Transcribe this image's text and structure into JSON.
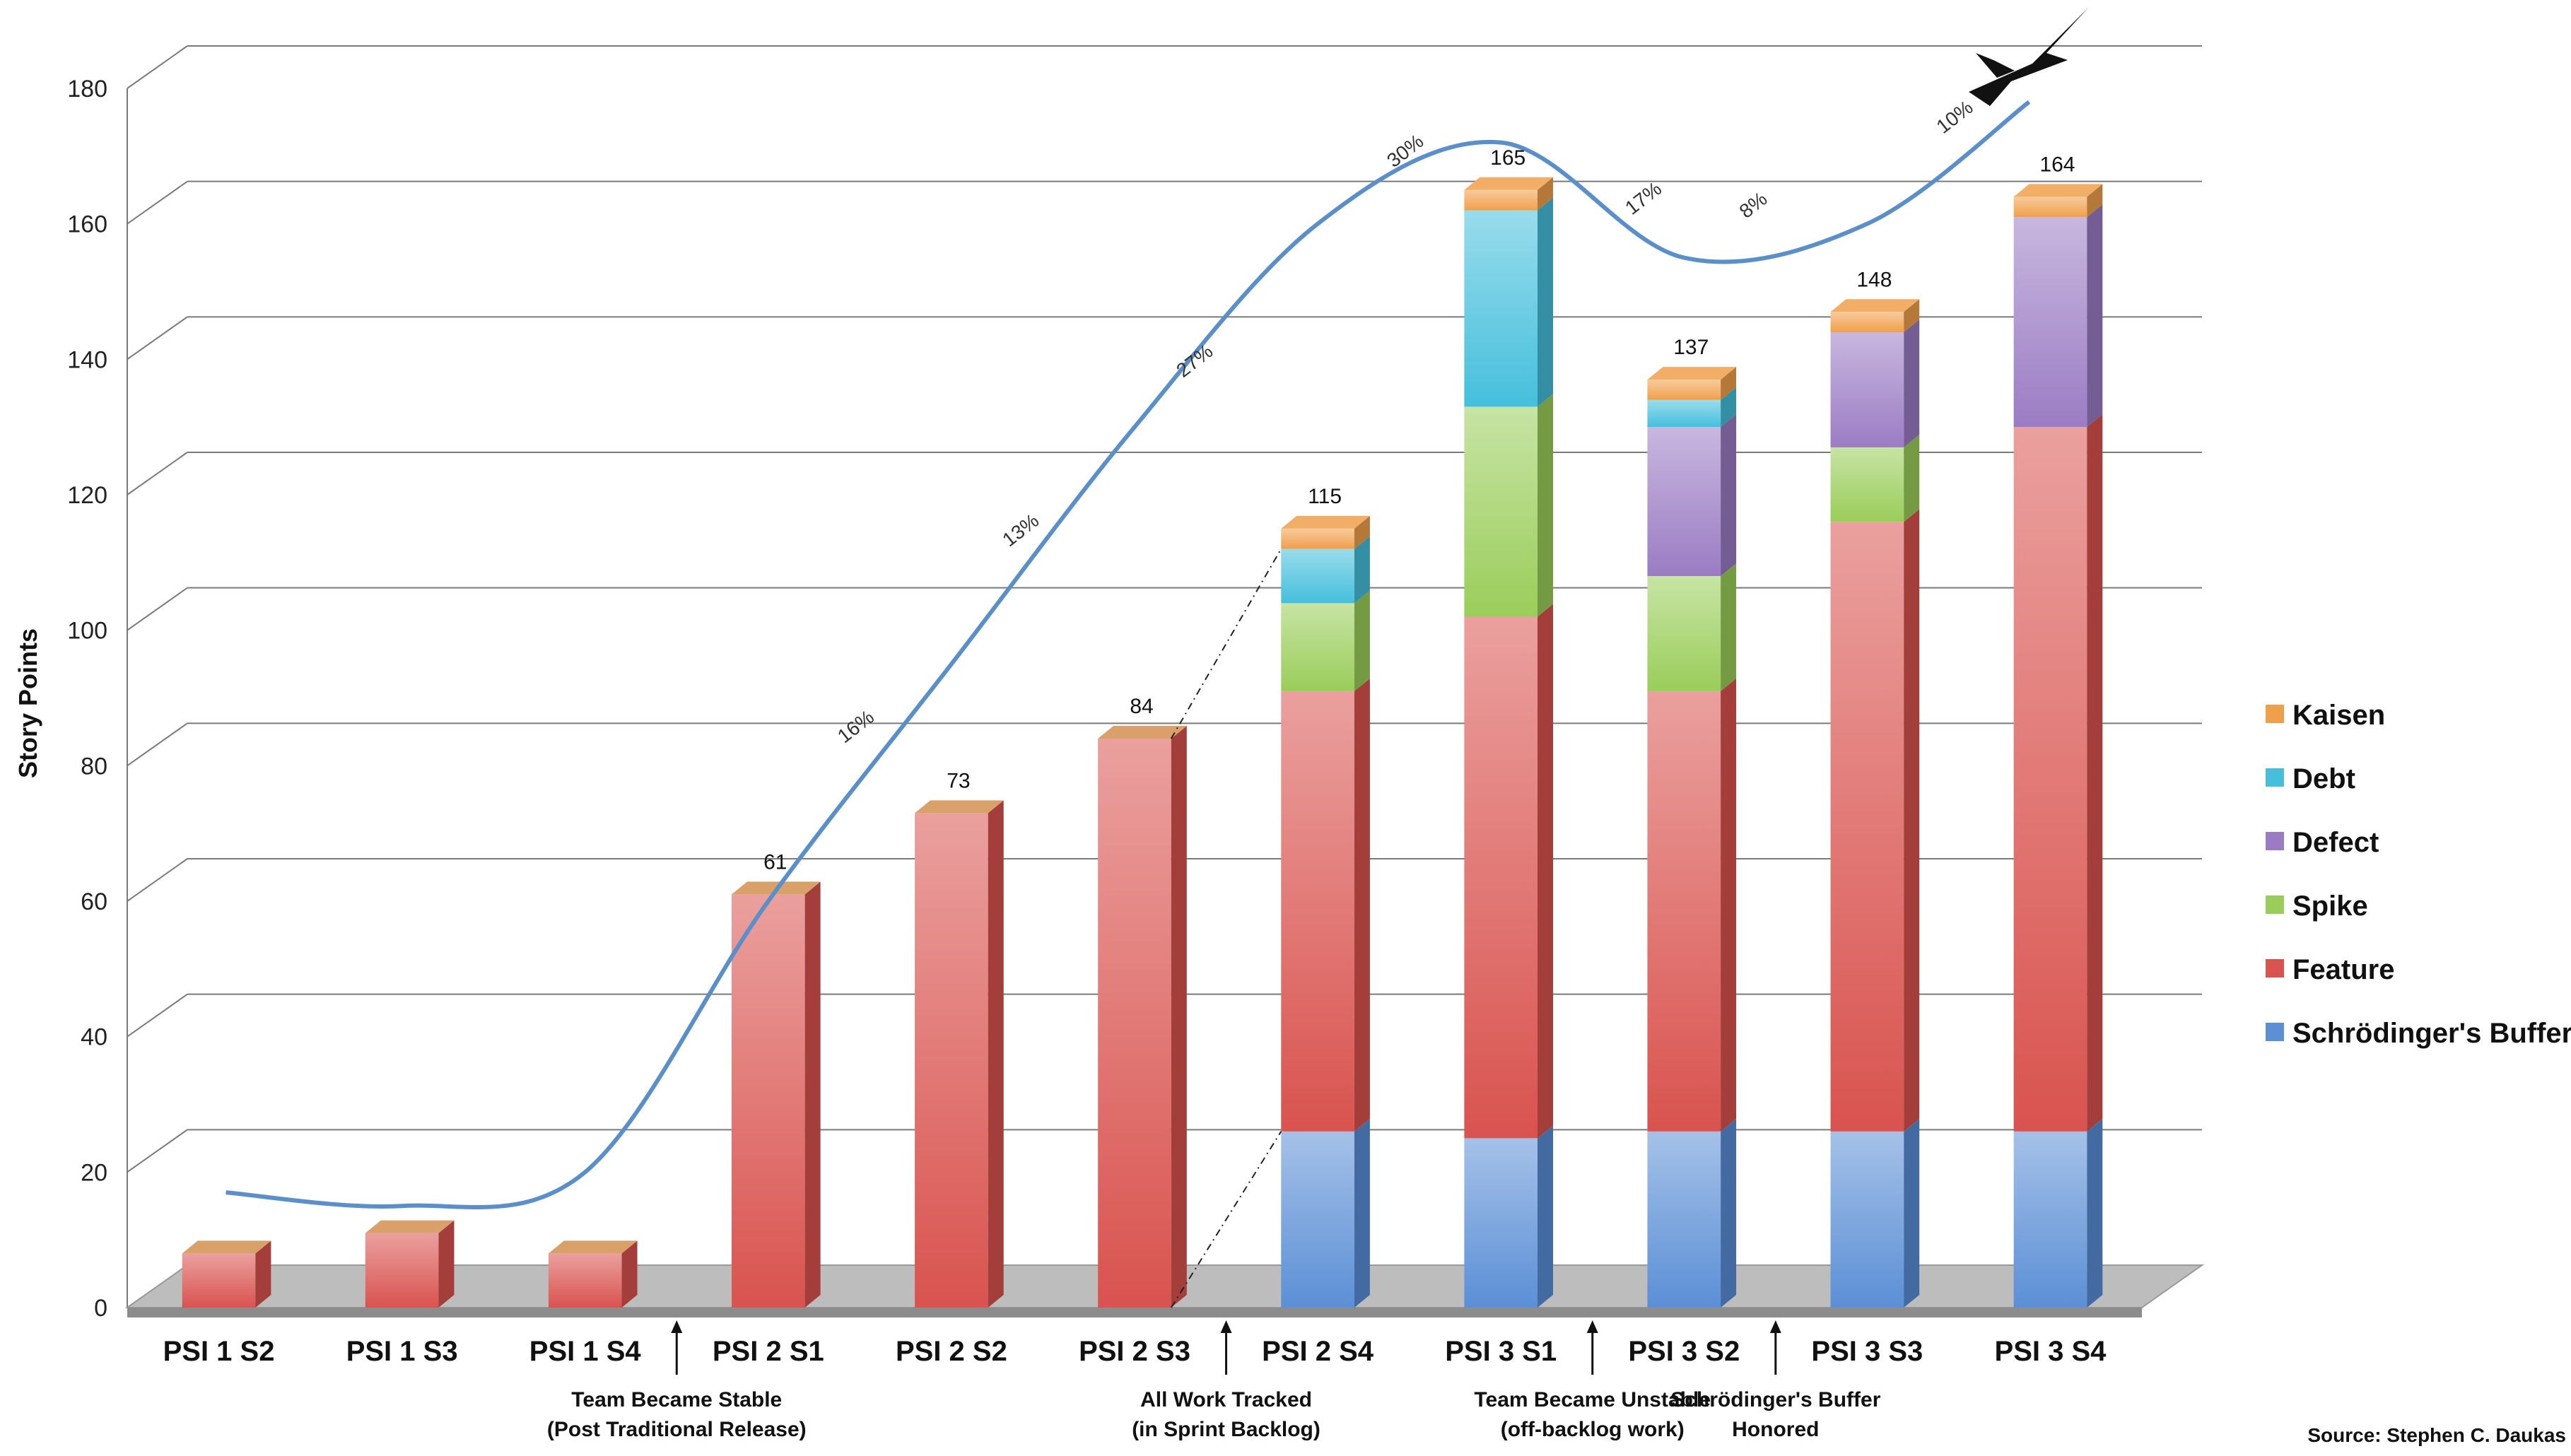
{
  "chart_data": {
    "type": "bar",
    "stacked": true,
    "ylabel": "Story Points",
    "xlabel": "",
    "ylim": [
      0,
      180
    ],
    "yticks": [
      0,
      20,
      40,
      60,
      80,
      100,
      120,
      140,
      160,
      180
    ],
    "grid": true,
    "legend_position": "right",
    "categories": [
      "PSI 1 S2",
      "PSI 1 S3",
      "PSI 1 S4",
      "PSI 2 S1",
      "PSI 2 S2",
      "PSI 2 S3",
      "PSI 2 S4",
      "PSI 3 S1",
      "PSI 3 S2",
      "PSI 3 S3",
      "PSI 3 S4"
    ],
    "series": [
      {
        "name": "Schrödinger's Buffer",
        "color": "#5b8fd6",
        "values": [
          0,
          0,
          0,
          0,
          0,
          0,
          26,
          25,
          26,
          26,
          26
        ]
      },
      {
        "name": "Feature",
        "color": "#d9534f",
        "values": [
          8,
          11,
          8,
          61,
          73,
          84,
          65,
          77,
          65,
          90,
          104
        ]
      },
      {
        "name": "Spike",
        "color": "#9acd5a",
        "values": [
          0,
          0,
          0,
          0,
          0,
          0,
          13,
          31,
          17,
          11,
          0
        ]
      },
      {
        "name": "Defect",
        "color": "#9b7cc4",
        "values": [
          0,
          0,
          0,
          0,
          0,
          0,
          0,
          0,
          22,
          17,
          31
        ]
      },
      {
        "name": "Debt",
        "color": "#45bfdc",
        "values": [
          0,
          0,
          0,
          0,
          0,
          0,
          8,
          29,
          4,
          0,
          0
        ]
      },
      {
        "name": "Kaisen",
        "color": "#f0a04b",
        "values": [
          0,
          0,
          0,
          0,
          0,
          0,
          3,
          3,
          3,
          3,
          3
        ]
      }
    ],
    "totals": [
      null,
      null,
      null,
      61,
      73,
      84,
      115,
      165,
      137,
      148,
      164
    ],
    "trend_line": {
      "color": "#5b8fc9",
      "points": [
        [
          0,
          17
        ],
        [
          1,
          15
        ],
        [
          2,
          20
        ],
        [
          3,
          60
        ],
        [
          4,
          95
        ],
        [
          5,
          130
        ],
        [
          6,
          160
        ],
        [
          7,
          172
        ],
        [
          8,
          155
        ],
        [
          9,
          160
        ],
        [
          10,
          178
        ]
      ]
    },
    "trend_labels": [
      {
        "text": "16%",
        "x": 3.5,
        "y": 85
      },
      {
        "text": "13%",
        "x": 4.4,
        "y": 114
      },
      {
        "text": "27%",
        "x": 5.35,
        "y": 139
      },
      {
        "text": "30%",
        "x": 6.5,
        "y": 170
      },
      {
        "text": "17%",
        "x": 7.8,
        "y": 163
      },
      {
        "text": "8%",
        "x": 8.4,
        "y": 162
      },
      {
        "text": "10%",
        "x": 9.5,
        "y": 175
      }
    ],
    "annotations": [
      {
        "after_index": 2,
        "lines": [
          "Team Became Stable",
          "(Post Traditional Release)"
        ]
      },
      {
        "after_index": 5,
        "lines": [
          "All Work Tracked",
          "(in Sprint Backlog)"
        ]
      },
      {
        "after_index": 7,
        "lines": [
          "Team Became Unstable",
          "(off-backlog work)"
        ]
      },
      {
        "after_index": 8,
        "lines": [
          "Schrödinger's Buffer",
          "Honored"
        ]
      }
    ],
    "legend": [
      "Kaisen",
      "Debt",
      "Defect",
      "Spike",
      "Feature",
      "Schrödinger's Buffer"
    ],
    "source": "Source: Stephen C. Daukas"
  }
}
